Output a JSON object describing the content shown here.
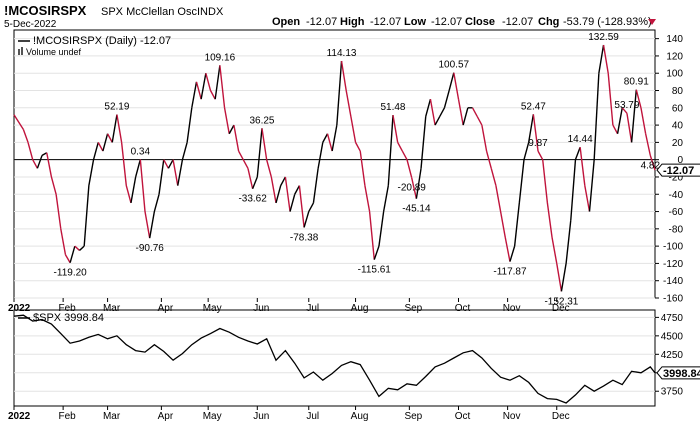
{
  "header": {
    "symbol": "!MCOSIRSPX",
    "description": "SPX McClellan Osc",
    "exchange": "INDX",
    "date": "5-Dec-2022",
    "open_label": "Open",
    "open": "-12.07",
    "high_label": "High",
    "high": "-12.07",
    "low_label": "Low",
    "low": "-12.07",
    "close_label": "Close",
    "close": "-12.07",
    "chg_label": "Chg",
    "chg": "-53.79 (-128.93%)"
  },
  "colors": {
    "up": "#000000",
    "down": "#c0143c",
    "zero_line": "#000000",
    "grid": "#e3e3e3"
  },
  "chart_data": [
    {
      "type": "line",
      "title": "!MCOSIRSPX (Daily) -12.07",
      "subtitle": "Volume undef",
      "last_value_label": "-12.07",
      "ylim": [
        -160,
        150
      ],
      "y_ticks": [
        "-160",
        "-140",
        "-120",
        "-100",
        "-80",
        "-60",
        "-40",
        "-20",
        "0",
        "20",
        "40",
        "60",
        "80",
        "100",
        "120",
        "140"
      ],
      "x_ticks": [
        "2022",
        "Feb",
        "Mar",
        "Apr",
        "May",
        "Jun",
        "Jul",
        "Aug",
        "Sep",
        "Oct",
        "Nov",
        "Dec"
      ],
      "series": [
        {
          "values": [
            [
              0,
              52
            ],
            [
              4,
              35
            ],
            [
              6,
              20
            ],
            [
              8,
              0
            ],
            [
              10,
              -10
            ],
            [
              12,
              5
            ],
            [
              14,
              8
            ],
            [
              16,
              -20
            ],
            [
              18,
              -40
            ],
            [
              20,
              -80
            ],
            [
              22,
              -110
            ],
            [
              24,
              -119.2
            ],
            [
              26,
              -100
            ],
            [
              28,
              -105
            ],
            [
              30,
              -100
            ],
            [
              32,
              -30
            ],
            [
              34,
              0
            ],
            [
              36,
              20
            ],
            [
              38,
              10
            ],
            [
              40,
              30
            ],
            [
              42,
              20
            ],
            [
              44,
              52.19
            ],
            [
              46,
              20
            ],
            [
              48,
              -30
            ],
            [
              50,
              -50
            ],
            [
              52,
              -20
            ],
            [
              54,
              0.34
            ],
            [
              56,
              -60
            ],
            [
              58,
              -90.76
            ],
            [
              60,
              -60
            ],
            [
              62,
              -40
            ],
            [
              64,
              0
            ],
            [
              66,
              -10
            ],
            [
              68,
              0
            ],
            [
              70,
              -30
            ],
            [
              72,
              0
            ],
            [
              74,
              20
            ],
            [
              76,
              60
            ],
            [
              78,
              90
            ],
            [
              80,
              70
            ],
            [
              82,
              100
            ],
            [
              84,
              80
            ],
            [
              86,
              70
            ],
            [
              88,
              109.16
            ],
            [
              90,
              60
            ],
            [
              92,
              30
            ],
            [
              94,
              40
            ],
            [
              96,
              10
            ],
            [
              98,
              0
            ],
            [
              100,
              -10
            ],
            [
              102,
              -33.62
            ],
            [
              104,
              -20
            ],
            [
              106,
              36.25
            ],
            [
              108,
              0
            ],
            [
              110,
              -20
            ],
            [
              112,
              -50
            ],
            [
              114,
              -30
            ],
            [
              116,
              -20
            ],
            [
              118,
              -60
            ],
            [
              120,
              -40
            ],
            [
              122,
              -30
            ],
            [
              124,
              -78.38
            ],
            [
              126,
              -60
            ],
            [
              128,
              -50
            ],
            [
              130,
              -10
            ],
            [
              132,
              20
            ],
            [
              134,
              30
            ],
            [
              136,
              10
            ],
            [
              138,
              40
            ],
            [
              140,
              114.13
            ],
            [
              142,
              80
            ],
            [
              144,
              50
            ],
            [
              146,
              20
            ],
            [
              148,
              10
            ],
            [
              150,
              -30
            ],
            [
              152,
              -60
            ],
            [
              154,
              -115.61
            ],
            [
              156,
              -100
            ],
            [
              158,
              -60
            ],
            [
              160,
              -30
            ],
            [
              162,
              51.48
            ],
            [
              164,
              20
            ],
            [
              166,
              10
            ],
            [
              168,
              0
            ],
            [
              170,
              -20.89
            ],
            [
              172,
              -45.14
            ],
            [
              174,
              -10
            ],
            [
              176,
              50
            ],
            [
              178,
              70
            ],
            [
              180,
              40
            ],
            [
              182,
              50
            ],
            [
              184,
              60
            ],
            [
              186,
              80
            ],
            [
              188,
              100.57
            ],
            [
              190,
              70
            ],
            [
              192,
              40
            ],
            [
              194,
              60
            ],
            [
              196,
              60
            ],
            [
              198,
              50
            ],
            [
              200,
              40
            ],
            [
              202,
              10
            ],
            [
              204,
              -10
            ],
            [
              206,
              -30
            ],
            [
              208,
              -60
            ],
            [
              210,
              -90
            ],
            [
              212,
              -117.87
            ],
            [
              214,
              -100
            ],
            [
              216,
              -50
            ],
            [
              218,
              0
            ],
            [
              220,
              20
            ],
            [
              222,
              52.47
            ],
            [
              224,
              9.87
            ],
            [
              226,
              0
            ],
            [
              228,
              -50
            ],
            [
              230,
              -90
            ],
            [
              232,
              -120
            ],
            [
              234,
              -152.31
            ],
            [
              236,
              -120
            ],
            [
              238,
              -70
            ],
            [
              240,
              0
            ],
            [
              242,
              14.44
            ],
            [
              244,
              -30
            ],
            [
              246,
              -60
            ],
            [
              248,
              0
            ],
            [
              250,
              100
            ],
            [
              252,
              132.59
            ],
            [
              254,
              100
            ],
            [
              256,
              40
            ],
            [
              258,
              30
            ],
            [
              260,
              60
            ],
            [
              262,
              53.79
            ],
            [
              264,
              20
            ],
            [
              266,
              80.91
            ],
            [
              268,
              60
            ],
            [
              270,
              30
            ],
            [
              272,
              4.82
            ],
            [
              274,
              -12.07
            ]
          ]
        }
      ],
      "data_labels": [
        {
          "x": 24,
          "y": -119.2,
          "text": "-119.20"
        },
        {
          "x": 44,
          "y": 52.19,
          "text": "52.19"
        },
        {
          "x": 54,
          "y": 0.34,
          "text": "0.34"
        },
        {
          "x": 58,
          "y": -90.76,
          "text": "-90.76"
        },
        {
          "x": 88,
          "y": 109.16,
          "text": "109.16"
        },
        {
          "x": 102,
          "y": -33.62,
          "text": "-33.62"
        },
        {
          "x": 106,
          "y": 36.25,
          "text": "36.25"
        },
        {
          "x": 124,
          "y": -78.38,
          "text": "-78.38"
        },
        {
          "x": 140,
          "y": 114.13,
          "text": "114.13"
        },
        {
          "x": 154,
          "y": -115.61,
          "text": "-115.61"
        },
        {
          "x": 162,
          "y": 51.48,
          "text": "51.48"
        },
        {
          "x": 170,
          "y": -20.89,
          "text": "-20.89"
        },
        {
          "x": 172,
          "y": -45.14,
          "text": "-45.14"
        },
        {
          "x": 188,
          "y": 100.57,
          "text": "100.57"
        },
        {
          "x": 212,
          "y": -117.87,
          "text": "-117.87"
        },
        {
          "x": 222,
          "y": 52.47,
          "text": "52.47"
        },
        {
          "x": 224,
          "y": 9.87,
          "text": "9.87"
        },
        {
          "x": 234,
          "y": -152.31,
          "text": "-152.31"
        },
        {
          "x": 242,
          "y": 14.44,
          "text": "14.44"
        },
        {
          "x": 252,
          "y": 132.59,
          "text": "132.59"
        },
        {
          "x": 262,
          "y": 53.79,
          "text": "53.79"
        },
        {
          "x": 266,
          "y": 80.91,
          "text": "80.91"
        },
        {
          "x": 272,
          "y": 4.82,
          "text": "4.82"
        }
      ]
    },
    {
      "type": "line",
      "title": "$SPX 3998.84",
      "last_value_label": "3998.84",
      "ylim": [
        3550,
        4850
      ],
      "y_ticks": [
        "3750",
        "4000",
        "4250",
        "4500",
        "4750"
      ],
      "x_ticks": [
        "2022",
        "Feb",
        "Mar",
        "Apr",
        "May",
        "Jun",
        "Jul",
        "Aug",
        "Sep",
        "Oct",
        "Nov",
        "Dec"
      ],
      "series": [
        {
          "values": [
            [
              0,
              4766
            ],
            [
              4,
              4780
            ],
            [
              8,
              4700
            ],
            [
              12,
              4720
            ],
            [
              16,
              4660
            ],
            [
              20,
              4530
            ],
            [
              24,
              4400
            ],
            [
              28,
              4430
            ],
            [
              32,
              4480
            ],
            [
              36,
              4520
            ],
            [
              40,
              4460
            ],
            [
              44,
              4500
            ],
            [
              48,
              4380
            ],
            [
              52,
              4300
            ],
            [
              56,
              4280
            ],
            [
              60,
              4380
            ],
            [
              64,
              4290
            ],
            [
              68,
              4170
            ],
            [
              72,
              4260
            ],
            [
              76,
              4380
            ],
            [
              80,
              4470
            ],
            [
              84,
              4530
            ],
            [
              88,
              4600
            ],
            [
              92,
              4550
            ],
            [
              96,
              4480
            ],
            [
              100,
              4430
            ],
            [
              104,
              4390
            ],
            [
              108,
              4460
            ],
            [
              112,
              4170
            ],
            [
              116,
              4300
            ],
            [
              120,
              4130
            ],
            [
              124,
              3930
            ],
            [
              128,
              4010
            ],
            [
              132,
              3900
            ],
            [
              136,
              3990
            ],
            [
              140,
              4100
            ],
            [
              144,
              4150
            ],
            [
              148,
              4110
            ],
            [
              152,
              3900
            ],
            [
              156,
              3680
            ],
            [
              160,
              3790
            ],
            [
              164,
              3770
            ],
            [
              168,
              3850
            ],
            [
              172,
              3830
            ],
            [
              176,
              3950
            ],
            [
              180,
              4080
            ],
            [
              184,
              4130
            ],
            [
              188,
              4200
            ],
            [
              192,
              4270
            ],
            [
              196,
              4300
            ],
            [
              200,
              4200
            ],
            [
              204,
              4060
            ],
            [
              208,
              3940
            ],
            [
              212,
              3900
            ],
            [
              216,
              3960
            ],
            [
              220,
              3870
            ],
            [
              224,
              3720
            ],
            [
              228,
              3650
            ],
            [
              232,
              3640
            ],
            [
              236,
              3590
            ],
            [
              240,
              3700
            ],
            [
              244,
              3830
            ],
            [
              248,
              3750
            ],
            [
              252,
              3820
            ],
            [
              256,
              3900
            ],
            [
              260,
              3840
            ],
            [
              264,
              4020
            ],
            [
              268,
              4000
            ],
            [
              272,
              4080
            ],
            [
              274,
              3998.84
            ]
          ]
        }
      ]
    }
  ]
}
